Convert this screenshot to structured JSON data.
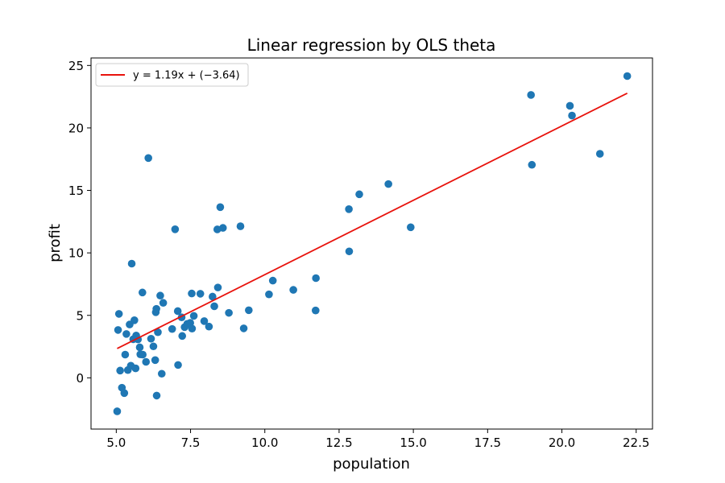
{
  "chart_data": {
    "type": "scatter",
    "title": "Linear regression by OLS theta",
    "xlabel": "population",
    "ylabel": "profit",
    "xlim": [
      4.15,
      23.05
    ],
    "ylim": [
      -4.1,
      25.6
    ],
    "xticks": [
      5.0,
      7.5,
      10.0,
      12.5,
      15.0,
      17.5,
      20.0,
      22.5
    ],
    "xtick_labels": [
      "5.0",
      "7.5",
      "10.0",
      "12.5",
      "15.0",
      "17.5",
      "20.0",
      "22.5"
    ],
    "yticks": [
      0,
      5,
      10,
      15,
      20,
      25
    ],
    "ytick_labels": [
      "0",
      "5",
      "10",
      "15",
      "20",
      "25"
    ],
    "grid": false,
    "legend_position": "top-left",
    "series": [
      {
        "type": "scatter",
        "color": "#1f77b4",
        "points": [
          [
            5.03,
            -2.68
          ],
          [
            5.06,
            3.83
          ],
          [
            5.09,
            5.12
          ],
          [
            5.13,
            0.58
          ],
          [
            5.19,
            -0.79
          ],
          [
            5.27,
            -1.22
          ],
          [
            5.3,
            1.86
          ],
          [
            5.34,
            3.51
          ],
          [
            5.39,
            0.62
          ],
          [
            5.45,
            4.27
          ],
          [
            5.49,
            0.97
          ],
          [
            5.52,
            9.14
          ],
          [
            5.57,
            3.09
          ],
          [
            5.61,
            4.61
          ],
          [
            5.65,
            0.76
          ],
          [
            5.67,
            3.39
          ],
          [
            5.73,
            3.08
          ],
          [
            5.79,
            2.44
          ],
          [
            5.81,
            1.88
          ],
          [
            5.88,
            6.83
          ],
          [
            5.89,
            1.86
          ],
          [
            6.0,
            1.28
          ],
          [
            6.08,
            17.59
          ],
          [
            6.17,
            3.13
          ],
          [
            6.25,
            2.52
          ],
          [
            6.31,
            1.42
          ],
          [
            6.33,
            5.25
          ],
          [
            6.35,
            5.52
          ],
          [
            6.36,
            -1.42
          ],
          [
            6.4,
            3.65
          ],
          [
            6.48,
            6.58
          ],
          [
            6.53,
            0.33
          ],
          [
            6.58,
            6.0
          ],
          [
            6.88,
            3.91
          ],
          [
            6.98,
            11.89
          ],
          [
            7.07,
            5.34
          ],
          [
            7.08,
            1.03
          ],
          [
            7.2,
            4.84
          ],
          [
            7.22,
            3.35
          ],
          [
            7.3,
            4.06
          ],
          [
            7.39,
            4.32
          ],
          [
            7.49,
            4.4
          ],
          [
            7.54,
            6.75
          ],
          [
            7.55,
            3.94
          ],
          [
            7.61,
            4.96
          ],
          [
            7.83,
            6.73
          ],
          [
            7.96,
            4.54
          ],
          [
            8.12,
            4.1
          ],
          [
            8.24,
            6.5
          ],
          [
            8.3,
            5.73
          ],
          [
            8.4,
            11.88
          ],
          [
            8.42,
            7.23
          ],
          [
            8.5,
            13.66
          ],
          [
            8.59,
            12.0
          ],
          [
            8.79,
            5.2
          ],
          [
            9.18,
            12.13
          ],
          [
            9.29,
            3.96
          ],
          [
            9.46,
            5.41
          ],
          [
            10.14,
            6.68
          ],
          [
            10.27,
            7.78
          ],
          [
            10.96,
            7.04
          ],
          [
            11.71,
            5.39
          ],
          [
            11.72,
            7.98
          ],
          [
            12.83,
            13.5
          ],
          [
            12.84,
            10.12
          ],
          [
            13.18,
            14.69
          ],
          [
            14.16,
            15.51
          ],
          [
            14.91,
            12.05
          ],
          [
            18.96,
            22.64
          ],
          [
            18.99,
            17.05
          ],
          [
            20.27,
            21.77
          ],
          [
            20.34,
            20.99
          ],
          [
            21.28,
            17.93
          ],
          [
            22.2,
            24.15
          ]
        ]
      },
      {
        "type": "line",
        "name": "y = 1.19x + (−3.64)",
        "color": "#e8120c",
        "slope": 1.19,
        "intercept": -3.64,
        "x_range": [
          5.03,
          22.2
        ]
      }
    ]
  }
}
